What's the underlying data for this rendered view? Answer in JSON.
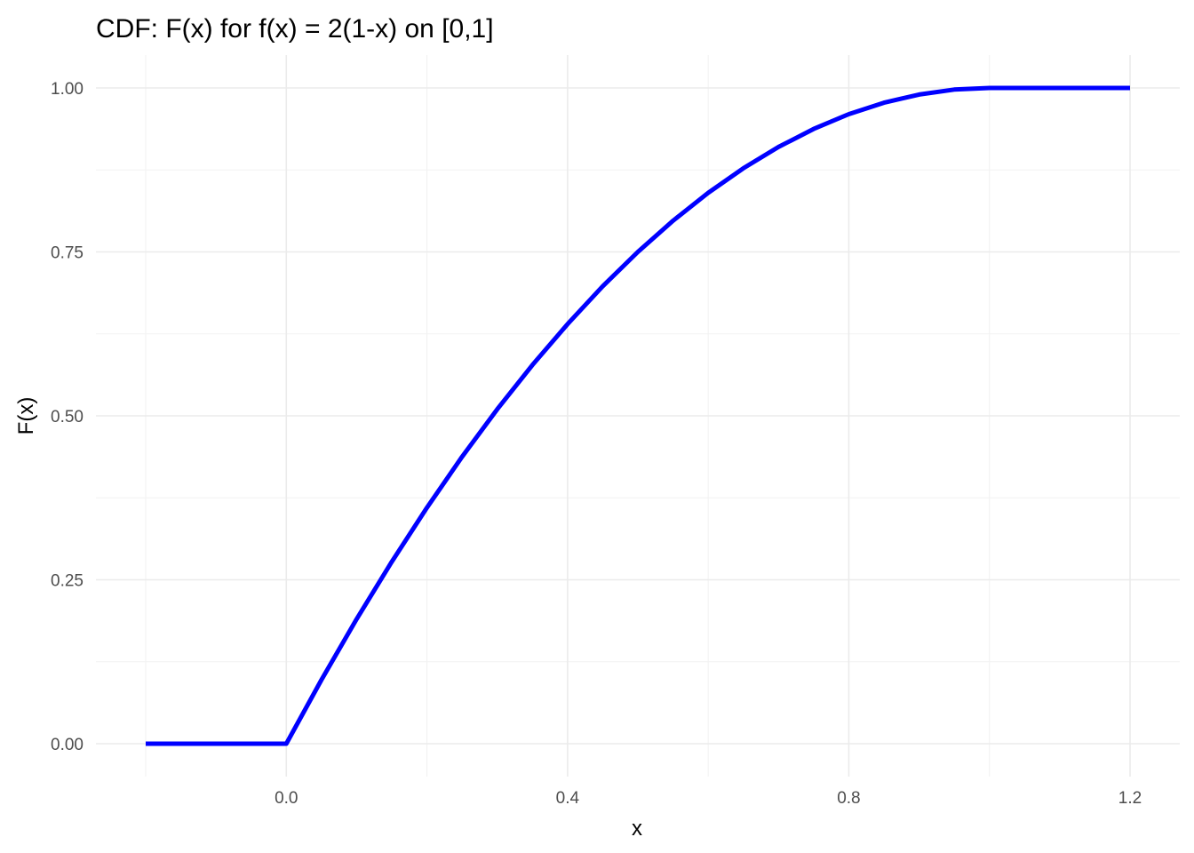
{
  "chart_data": {
    "type": "line",
    "title": "CDF: F(x) for f(x) = 2(1-x) on [0,1]",
    "xlabel": "x",
    "ylabel": "F(x)",
    "xlim": [
      -0.2,
      1.2
    ],
    "ylim": [
      0,
      1
    ],
    "x_ticks": [
      0.0,
      0.4,
      0.8,
      1.2
    ],
    "x_tick_labels": [
      "0.0",
      "0.4",
      "0.8",
      "1.2"
    ],
    "x_minor_ticks": [
      -0.2,
      0.2,
      0.6,
      1.0
    ],
    "y_ticks": [
      0.0,
      0.25,
      0.5,
      0.75,
      1.0
    ],
    "y_tick_labels": [
      "0.00",
      "0.25",
      "0.50",
      "0.75",
      "1.00"
    ],
    "y_minor_ticks": [
      0.125,
      0.375,
      0.625,
      0.875
    ],
    "grid": true,
    "legend": "none",
    "series": [
      {
        "color": "#0000ff",
        "x": [
          -0.2,
          0.0,
          0.05,
          0.1,
          0.15,
          0.2,
          0.25,
          0.3,
          0.35,
          0.4,
          0.45,
          0.5,
          0.55,
          0.6,
          0.65,
          0.7,
          0.75,
          0.8,
          0.85,
          0.9,
          0.95,
          1.0,
          1.2
        ],
        "y": [
          0.0,
          0.0,
          0.0975,
          0.19,
          0.2775,
          0.36,
          0.4375,
          0.51,
          0.5775,
          0.64,
          0.6975,
          0.75,
          0.7975,
          0.84,
          0.8775,
          0.91,
          0.9375,
          0.96,
          0.9775,
          0.99,
          0.9975,
          1.0,
          1.0
        ]
      }
    ]
  }
}
